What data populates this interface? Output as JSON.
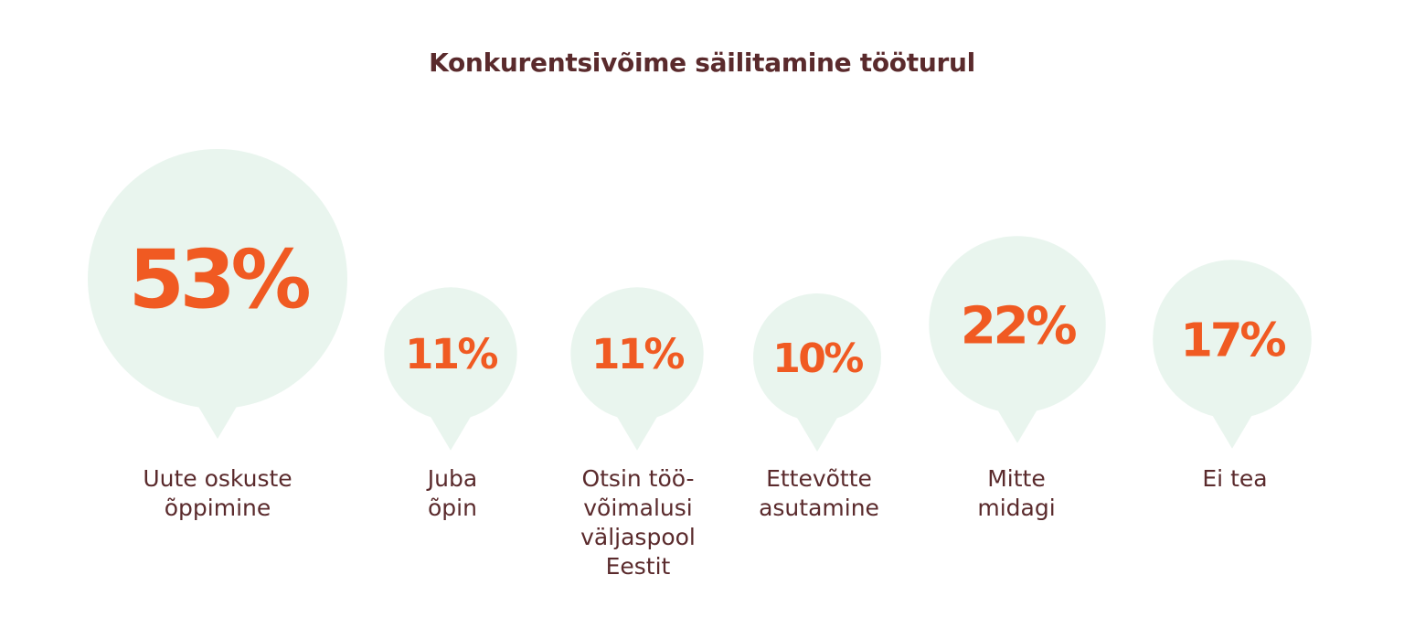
{
  "chart_data": {
    "type": "bubble",
    "title": "Konkurentsivõime säilitamine tööturul",
    "unit": "%",
    "categories": [
      "Uute oskuste\nõppimine",
      "Juba\nõpin",
      "Otsin töö-\nvõimalusi\nväljaspool\nEestit",
      "Ettevõtte\nasutamine",
      "Mitte\nmidagi",
      "Ei tea"
    ],
    "values": [
      53,
      11,
      11,
      10,
      22,
      17
    ],
    "value_labels": [
      "53%",
      "11%",
      "11%",
      "10%",
      "22%",
      "17%"
    ]
  },
  "colors": {
    "bubble_fill": "#e9f5ee",
    "value_text": "#f05a22",
    "label_text": "#5a2a2c"
  }
}
